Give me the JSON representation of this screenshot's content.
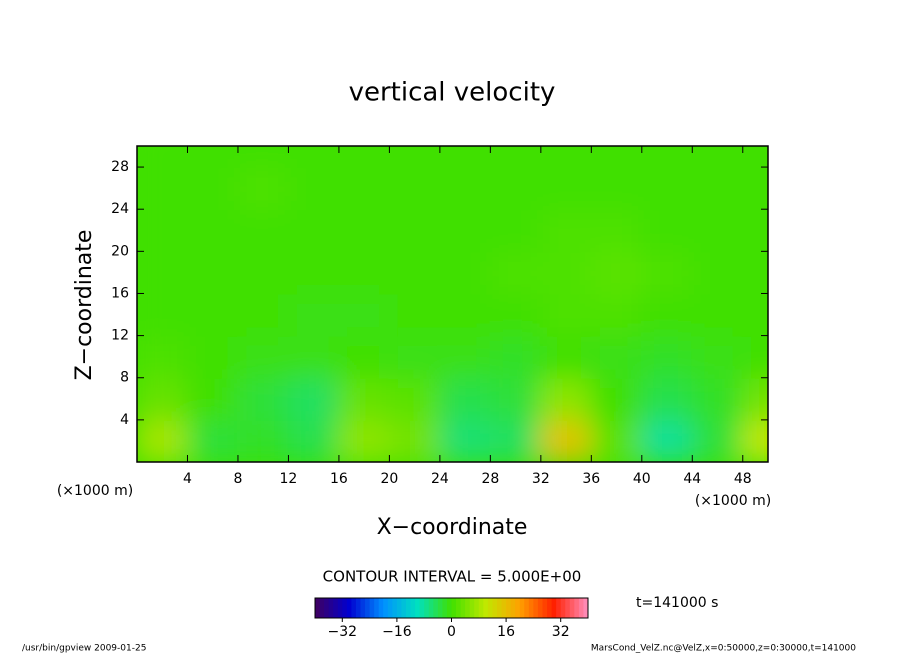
{
  "chart_data": {
    "type": "heatmap",
    "title": "vertical velocity",
    "xlabel": "X−coordinate",
    "ylabel": "Z−coordinate",
    "x_unit": "(×1000 m)",
    "y_unit": "(×1000 m)",
    "xlim": [
      0,
      50
    ],
    "ylim": [
      0,
      30
    ],
    "xticks": [
      4,
      8,
      12,
      16,
      20,
      24,
      28,
      32,
      36,
      40,
      44,
      48
    ],
    "yticks": [
      4,
      8,
      12,
      16,
      20,
      24,
      28
    ],
    "x": [
      2,
      6,
      10,
      14,
      18,
      22,
      26,
      30,
      34,
      38,
      42,
      46,
      50
    ],
    "y": [
      2,
      6,
      10,
      14,
      18,
      22,
      26,
      30
    ],
    "z": [
      [
        8,
        -3,
        -2,
        -4,
        6,
        4,
        -6,
        -5,
        15,
        2,
        -8,
        -3,
        10
      ],
      [
        3,
        0,
        -3,
        -5,
        3,
        2,
        -4,
        -3,
        6,
        0,
        -4,
        -2,
        4
      ],
      [
        1,
        0,
        -1,
        -1,
        0,
        -1,
        -1,
        -2,
        0,
        -1,
        -2,
        -1,
        0
      ],
      [
        0,
        0,
        0,
        -1,
        -1,
        0,
        0,
        0,
        1,
        1,
        0,
        0,
        0
      ],
      [
        0,
        0,
        0,
        0,
        0,
        0,
        0,
        1,
        1,
        2,
        1,
        0,
        0
      ],
      [
        0,
        0,
        0,
        0,
        0,
        0,
        0,
        0,
        1,
        1,
        0,
        0,
        0
      ],
      [
        0,
        0,
        1,
        0,
        0,
        0,
        0,
        0,
        0,
        0,
        0,
        0,
        0
      ],
      [
        0,
        0,
        0,
        0,
        0,
        0,
        0,
        0,
        0,
        0,
        0,
        0,
        0
      ]
    ],
    "clim": [
      -40,
      40
    ],
    "cticks": [
      {
        "value": -32,
        "label": "−32"
      },
      {
        "value": -16,
        "label": "−16"
      },
      0,
      16,
      32
    ],
    "cmap_stops": [
      -40,
      -30,
      -20,
      -10,
      0,
      10,
      20,
      30,
      40
    ],
    "cmap_colors": [
      "#400060",
      "#0000d0",
      "#0090ff",
      "#00e0c0",
      "#40e000",
      "#c0e800",
      "#ffa000",
      "#ff2000",
      "#ff90c0"
    ],
    "contour_interval": "CONTOUR INTERVAL = 5.000E+00",
    "time": "t=141000 s",
    "footer_left": "/usr/bin/gpview  2009-01-25",
    "footer_right": "MarsCond_VelZ.nc@VelZ,x=0:50000,z=0:30000,t=141000"
  }
}
